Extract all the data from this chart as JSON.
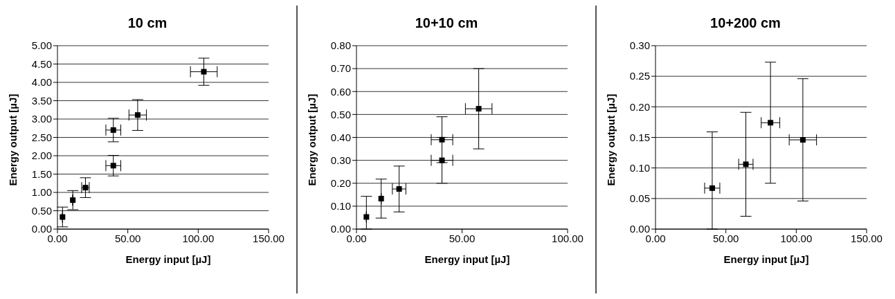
{
  "chart_data": [
    {
      "type": "scatter",
      "title": "10 cm",
      "xlabel": "Energy input [µJ]",
      "ylabel": "Energy output [µJ]",
      "marker": "square",
      "grid": "y",
      "x": [
        3.6,
        10.9,
        19.9,
        39.7,
        39.7,
        57,
        104
      ],
      "series": [
        {
          "color": "#000000",
          "values": [
            0.33,
            0.79,
            1.13,
            1.73,
            2.7,
            3.11,
            4.29
          ],
          "errors": [
            0.27,
            0.26,
            0.27,
            0.28,
            0.32,
            0.42,
            0.37
          ],
          "xerrors": [
            null,
            null,
            2.7,
            5.3,
            5.3,
            6.2,
            9.5
          ]
        }
      ],
      "xlim": [
        0,
        150
      ],
      "xticks": [
        {
          "value": 0,
          "label": "0.00"
        },
        {
          "value": 50,
          "label": "50.00"
        },
        {
          "value": 100,
          "label": "100.00"
        },
        {
          "value": 150,
          "label": "150.00"
        }
      ],
      "ylim": [
        0,
        5
      ],
      "yticks": [
        {
          "value": 0,
          "label": "0.00"
        },
        {
          "value": 0.5,
          "label": "0.50"
        },
        {
          "value": 1,
          "label": "1.00"
        },
        {
          "value": 1.5,
          "label": "1.50"
        },
        {
          "value": 2,
          "label": "2.00"
        },
        {
          "value": 2.5,
          "label": "2.50"
        },
        {
          "value": 3,
          "label": "3.00"
        },
        {
          "value": 3.5,
          "label": "3.50"
        },
        {
          "value": 4,
          "label": "4.00"
        },
        {
          "value": 4.5,
          "label": "4.50"
        },
        {
          "value": 5,
          "label": "5.00"
        }
      ]
    },
    {
      "type": "scatter",
      "title": "10+10 cm",
      "xlabel": "Energy input [µJ]",
      "ylabel": "Energy output [µJ]",
      "marker": "square",
      "grid": "y",
      "x": [
        4.7,
        11.7,
        20.2,
        40.5,
        40.5,
        57.9
      ],
      "series": [
        {
          "color": "#000000",
          "values": [
            0.053,
            0.133,
            0.175,
            0.39,
            0.3,
            0.525
          ],
          "errors": [
            [
              0,
              0.143
            ],
            0.085,
            0.1,
            0.1,
            0.1,
            0.175
          ],
          "xerrors": [
            null,
            null,
            3.2,
            5.1,
            5.1,
            6.3
          ]
        }
      ],
      "xlim": [
        0,
        100
      ],
      "xticks": [
        {
          "value": 0,
          "label": "0.00"
        },
        {
          "value": 50,
          "label": "50.00"
        },
        {
          "value": 100,
          "label": "100.00"
        }
      ],
      "ylim": [
        0,
        0.8
      ],
      "yticks": [
        {
          "value": 0,
          "label": "0.00"
        },
        {
          "value": 0.1,
          "label": "0.10"
        },
        {
          "value": 0.2,
          "label": "0.20"
        },
        {
          "value": 0.3,
          "label": "0.30"
        },
        {
          "value": 0.4,
          "label": "0.40"
        },
        {
          "value": 0.5,
          "label": "0.50"
        },
        {
          "value": 0.6,
          "label": "0.60"
        },
        {
          "value": 0.7,
          "label": "0.70"
        },
        {
          "value": 0.8,
          "label": "0.80"
        }
      ]
    },
    {
      "type": "scatter",
      "title": "10+200 cm",
      "xlabel": "Energy input [µJ]",
      "ylabel": "Energy output [µJ]",
      "marker": "square",
      "grid": "y",
      "x": [
        40.3,
        64.2,
        81.7,
        104.7
      ],
      "series": [
        {
          "color": "#000000",
          "values": [
            0.067,
            0.106,
            0.174,
            0.146
          ],
          "errors": [
            [
              0,
              0.159
            ],
            0.085,
            0.099,
            0.1
          ],
          "xerrors": [
            5.4,
            5.1,
            6.6,
            9.7
          ]
        }
      ],
      "xlim": [
        0,
        150
      ],
      "xticks": [
        {
          "value": 0,
          "label": "0.00"
        },
        {
          "value": 50,
          "label": "50.00"
        },
        {
          "value": 100,
          "label": "100.00"
        },
        {
          "value": 150,
          "label": "150.00"
        }
      ],
      "ylim": [
        0,
        0.3
      ],
      "yticks": [
        {
          "value": 0,
          "label": "0.00"
        },
        {
          "value": 0.05,
          "label": "0.05"
        },
        {
          "value": 0.1,
          "label": "0.10"
        },
        {
          "value": 0.15,
          "label": "0.15"
        },
        {
          "value": 0.2,
          "label": "0.20"
        },
        {
          "value": 0.25,
          "label": "0.25"
        },
        {
          "value": 0.3,
          "label": "0.30"
        }
      ]
    }
  ]
}
